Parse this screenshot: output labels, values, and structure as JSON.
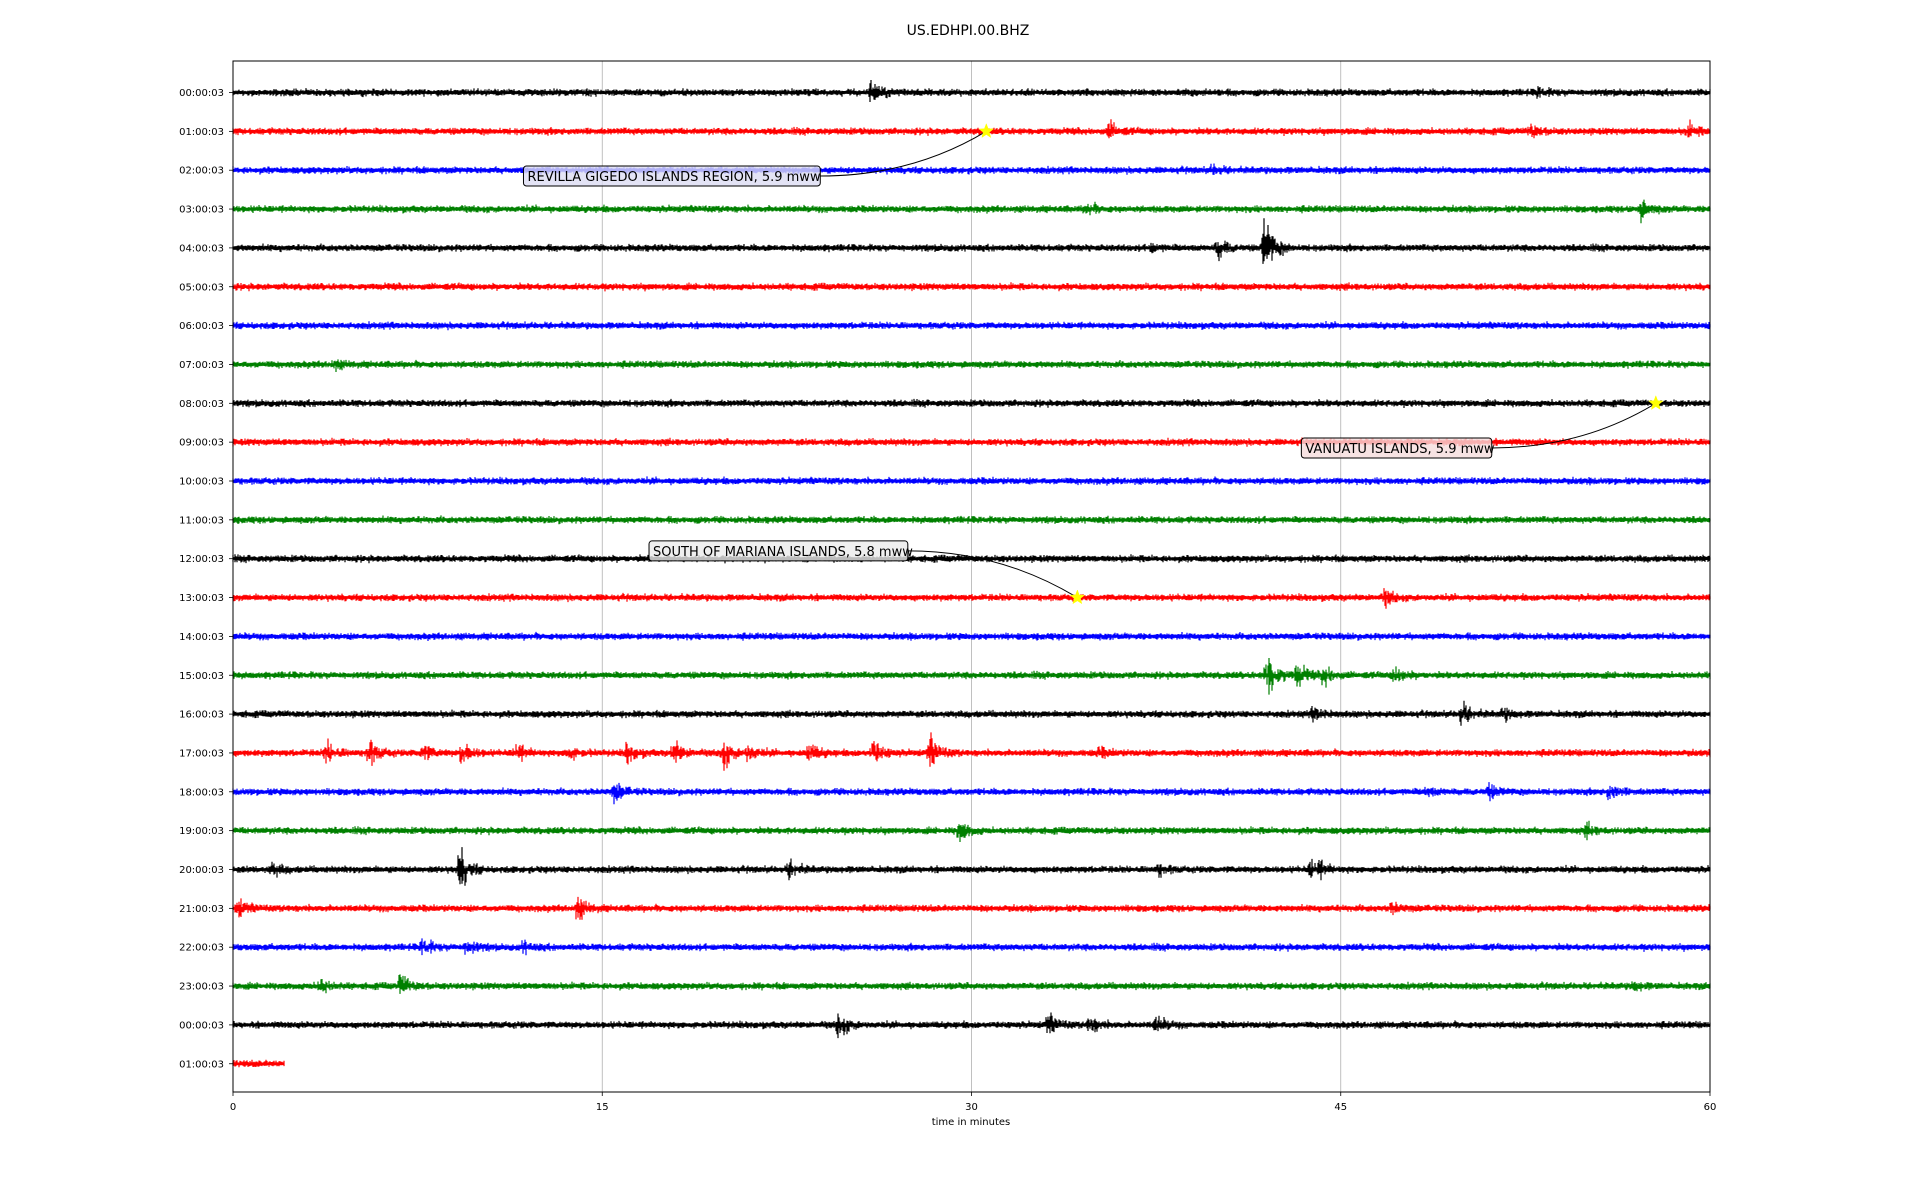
{
  "chart_data": {
    "type": "line",
    "title": "US.EDHPI.00.BHZ",
    "xlabel": "time in minutes",
    "ylabel": "",
    "xlim": [
      0,
      60
    ],
    "xticks": [
      0,
      15,
      30,
      45,
      60
    ],
    "xtick_labels": [
      "0",
      "15",
      "30",
      "45",
      "60"
    ],
    "grid": "vertical",
    "line_colors": [
      "#000000",
      "#ff0000",
      "#0000ff",
      "#008000"
    ],
    "rows": [
      {
        "label": "00:00:03",
        "end_minute": 60,
        "events": [
          {
            "t": 25.9,
            "a": 0.7
          },
          {
            "t": 53,
            "a": 0.3
          }
        ]
      },
      {
        "label": "01:00:03",
        "end_minute": 60,
        "events": [
          {
            "t": 35.6,
            "a": 0.6
          },
          {
            "t": 52.7,
            "a": 0.5
          },
          {
            "t": 59.1,
            "a": 0.5
          }
        ]
      },
      {
        "label": "02:00:03",
        "end_minute": 60,
        "events": [
          {
            "t": 39.8,
            "a": 0.3
          }
        ]
      },
      {
        "label": "03:00:03",
        "end_minute": 60,
        "events": [
          {
            "t": 34.7,
            "a": 0.4
          },
          {
            "t": 57.2,
            "a": 0.7
          }
        ]
      },
      {
        "label": "04:00:03",
        "end_minute": 60,
        "events": [
          {
            "t": 40.0,
            "a": 0.8
          },
          {
            "t": 41.9,
            "a": 2.4
          },
          {
            "t": 37.3,
            "a": 0.3
          }
        ]
      },
      {
        "label": "05:00:03",
        "end_minute": 60,
        "events": []
      },
      {
        "label": "06:00:03",
        "end_minute": 60,
        "events": []
      },
      {
        "label": "07:00:03",
        "end_minute": 60,
        "events": [
          {
            "t": 4.1,
            "a": 0.3
          }
        ]
      },
      {
        "label": "08:00:03",
        "end_minute": 60,
        "events": []
      },
      {
        "label": "09:00:03",
        "end_minute": 60,
        "events": []
      },
      {
        "label": "10:00:03",
        "end_minute": 60,
        "events": []
      },
      {
        "label": "11:00:03",
        "end_minute": 60,
        "events": []
      },
      {
        "label": "12:00:03",
        "end_minute": 60,
        "events": []
      },
      {
        "label": "13:00:03",
        "end_minute": 60,
        "events": [
          {
            "t": 46.8,
            "a": 0.5
          }
        ]
      },
      {
        "label": "14:00:03",
        "end_minute": 60,
        "events": []
      },
      {
        "label": "15:00:03",
        "end_minute": 60,
        "events": [
          {
            "t": 42.0,
            "a": 2.0
          },
          {
            "t": 43.2,
            "a": 0.9
          },
          {
            "t": 44.3,
            "a": 0.8
          },
          {
            "t": 47.2,
            "a": 0.6
          }
        ]
      },
      {
        "label": "16:00:03",
        "end_minute": 60,
        "events": [
          {
            "t": 43.9,
            "a": 0.5
          },
          {
            "t": 49.9,
            "a": 0.8
          },
          {
            "t": 51.6,
            "a": 0.4
          }
        ]
      },
      {
        "label": "17:00:03",
        "end_minute": 60,
        "events": [
          {
            "t": 3.8,
            "a": 0.8
          },
          {
            "t": 5.5,
            "a": 1.0
          },
          {
            "t": 7.7,
            "a": 0.7
          },
          {
            "t": 9.3,
            "a": 0.9
          },
          {
            "t": 11.5,
            "a": 0.7
          },
          {
            "t": 13.6,
            "a": 0.6
          },
          {
            "t": 16.0,
            "a": 0.7
          },
          {
            "t": 17.9,
            "a": 0.9
          },
          {
            "t": 19.9,
            "a": 1.1
          },
          {
            "t": 20.9,
            "a": 0.7
          },
          {
            "t": 23.4,
            "a": 0.7
          },
          {
            "t": 26.0,
            "a": 1.0
          },
          {
            "t": 28.3,
            "a": 1.1
          },
          {
            "t": 35.2,
            "a": 0.3
          }
        ]
      },
      {
        "label": "18:00:03",
        "end_minute": 60,
        "events": [
          {
            "t": 15.5,
            "a": 0.7
          },
          {
            "t": 48.5,
            "a": 0.3
          },
          {
            "t": 51.0,
            "a": 0.5
          },
          {
            "t": 55.9,
            "a": 0.6
          }
        ]
      },
      {
        "label": "19:00:03",
        "end_minute": 60,
        "events": [
          {
            "t": 29.5,
            "a": 0.8
          },
          {
            "t": 55.0,
            "a": 0.4
          }
        ]
      },
      {
        "label": "20:00:03",
        "end_minute": 60,
        "events": [
          {
            "t": 1.6,
            "a": 0.4
          },
          {
            "t": 9.2,
            "a": 1.6
          },
          {
            "t": 22.6,
            "a": 0.6
          },
          {
            "t": 37.6,
            "a": 0.4
          },
          {
            "t": 43.8,
            "a": 0.7
          },
          {
            "t": 44.1,
            "a": 0.6
          }
        ]
      },
      {
        "label": "21:00:03",
        "end_minute": 60,
        "events": [
          {
            "t": 0.2,
            "a": 0.6
          },
          {
            "t": 14.0,
            "a": 0.8
          },
          {
            "t": 47.1,
            "a": 0.4
          }
        ]
      },
      {
        "label": "22:00:03",
        "end_minute": 60,
        "events": [
          {
            "t": 7.7,
            "a": 0.6
          },
          {
            "t": 9.5,
            "a": 0.6
          },
          {
            "t": 11.8,
            "a": 0.4
          }
        ]
      },
      {
        "label": "23:00:03",
        "end_minute": 60,
        "events": [
          {
            "t": 3.5,
            "a": 0.6
          },
          {
            "t": 6.8,
            "a": 0.8
          },
          {
            "t": 56.9,
            "a": 0.3
          }
        ]
      },
      {
        "label": "00:00:03",
        "end_minute": 60,
        "events": [
          {
            "t": 24.6,
            "a": 0.9
          },
          {
            "t": 33.1,
            "a": 0.7
          },
          {
            "t": 34.8,
            "a": 0.6
          },
          {
            "t": 37.5,
            "a": 0.6
          }
        ]
      },
      {
        "label": "01:00:03",
        "end_minute": 2.1,
        "events": []
      }
    ],
    "annotations": [
      {
        "text": "REVILLA GIGEDO ISLANDS REGION, 5.9 mww",
        "row": 1,
        "minute": 30.6,
        "face": "#dcdcf2",
        "label_minute": 11.8,
        "label_row": 2.15
      },
      {
        "text": "VANUATU ISLANDS, 5.9 mww",
        "row": 8,
        "minute": 57.8,
        "face": "#f5dcdc",
        "label_minute": 43.4,
        "label_row": 9.15
      },
      {
        "text": "SOUTH OF MARIANA ISLANDS, 5.8 mww",
        "row": 13,
        "minute": 34.3,
        "face": "#ebebeb",
        "label_minute": 16.9,
        "label_row": 11.8
      }
    ]
  }
}
